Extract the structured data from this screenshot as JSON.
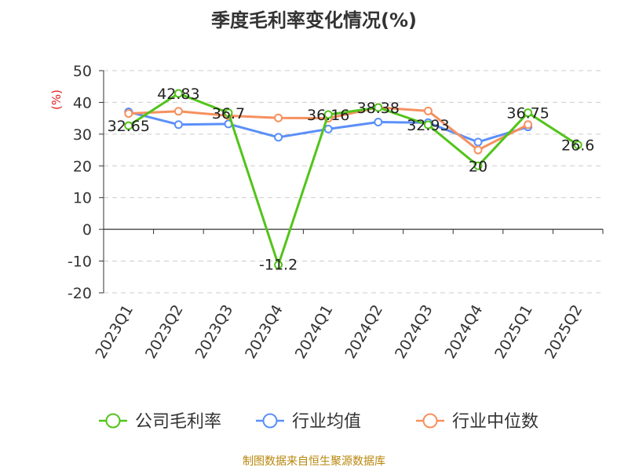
{
  "chart_data": {
    "type": "line",
    "title": "季度毛利率变化情况(%)",
    "ylabel": "(%)",
    "xlabel": "",
    "categories": [
      "2023Q1",
      "2023Q2",
      "2023Q3",
      "2023Q4",
      "2024Q1",
      "2024Q2",
      "2024Q3",
      "2024Q4",
      "2025Q1",
      "2025Q2"
    ],
    "ylim": [
      -20,
      50
    ],
    "yticks": [
      -20,
      -10,
      0,
      10,
      20,
      30,
      40,
      50
    ],
    "grid": true,
    "legend_position": "bottom",
    "series": [
      {
        "name": "公司毛利率",
        "color": "#52c41a",
        "values": [
          32.65,
          42.83,
          36.7,
          -11.2,
          36.16,
          38.38,
          32.93,
          20,
          36.75,
          26.6
        ],
        "labels": [
          "32.65",
          "42.83",
          "36.7",
          "-11.2",
          "36.16",
          "38.38",
          "32.93",
          "20",
          "36.75",
          "26.6"
        ]
      },
      {
        "name": "行业均值",
        "color": "#5b8ff9",
        "values": [
          37.0,
          33.0,
          33.2,
          29.0,
          31.6,
          33.8,
          33.6,
          27.5,
          32.3,
          null
        ]
      },
      {
        "name": "行业中位数",
        "color": "#f6905e",
        "values": [
          36.5,
          37.2,
          35.8,
          35.1,
          35.0,
          38.4,
          37.3,
          25.0,
          33.0,
          null
        ]
      }
    ],
    "source": "制图数据来自恒生聚源数据库"
  }
}
